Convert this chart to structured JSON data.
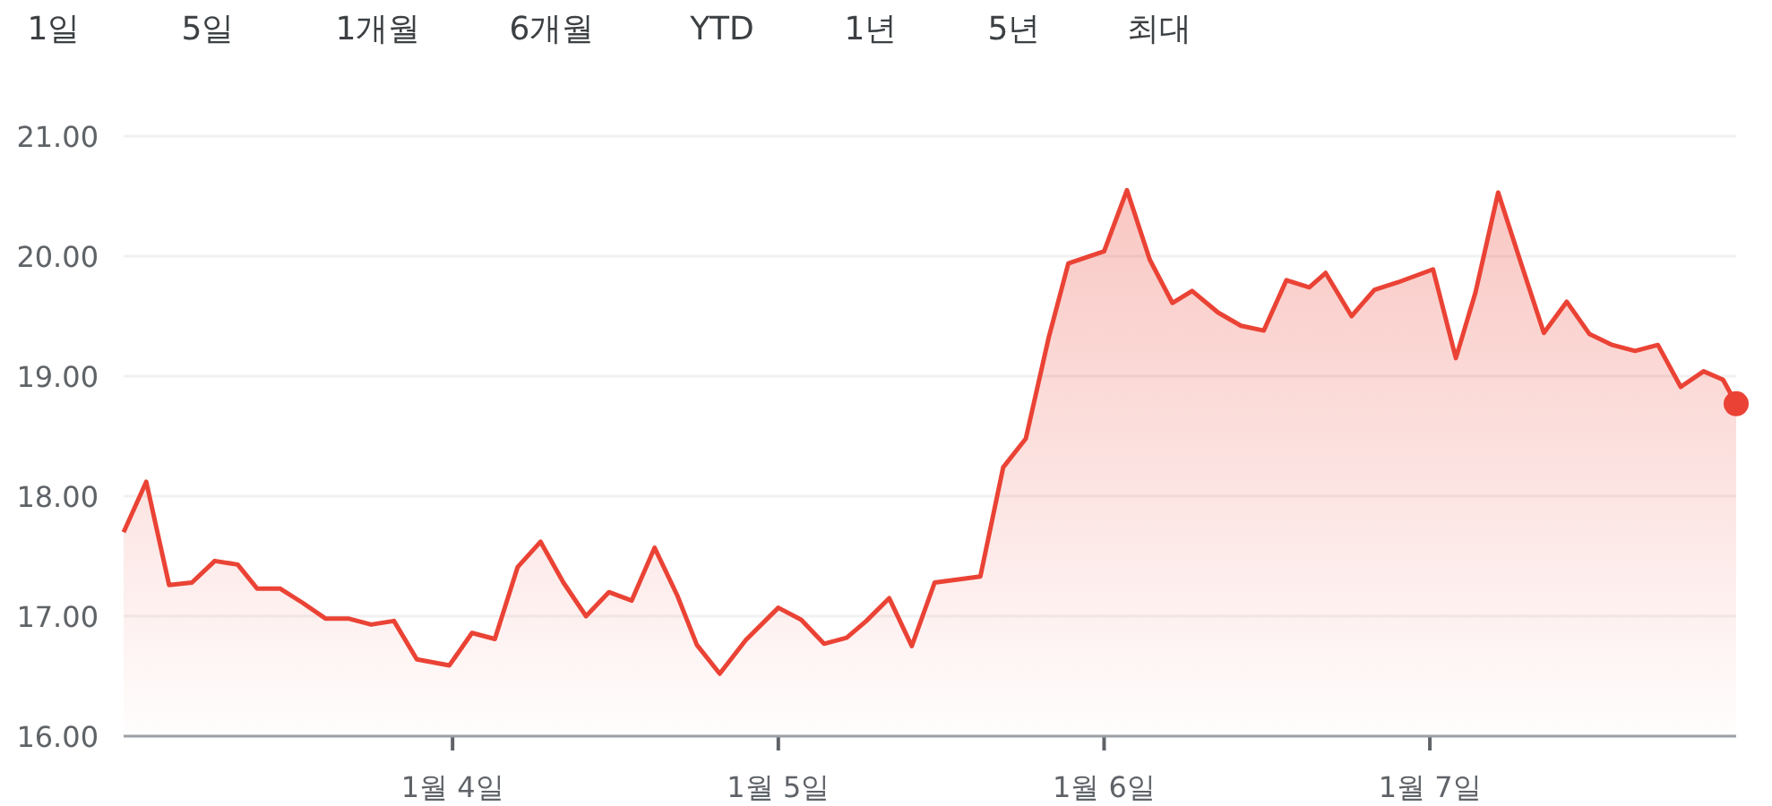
{
  "chart_data": {
    "type": "area",
    "annotations": [
      "1일",
      "5일",
      "1개월",
      "6개월",
      "YTD",
      "1년",
      "5년",
      "최대"
    ],
    "xlim": [
      "--01-02T23:46",
      "--01-07T22:34"
    ],
    "ylim": [
      16,
      21
    ],
    "xticks": [
      {
        "value": "--01-04",
        "label": "1월 4일"
      },
      {
        "value": "--01-05",
        "label": "1월 5일"
      },
      {
        "value": "--01-06",
        "label": "1월 6일"
      },
      {
        "value": "--01-07",
        "label": "1월 7일"
      }
    ],
    "yticks": [
      {
        "value": 16,
        "label": "16.00"
      },
      {
        "value": 17,
        "label": "17.00"
      },
      {
        "value": 18,
        "label": "18.00"
      },
      {
        "value": 19,
        "label": "19.00"
      },
      {
        "value": 20,
        "label": "20.00"
      },
      {
        "value": 21,
        "label": "21.00"
      }
    ],
    "grid": "y",
    "series": [
      {
        "color": "#ea4335",
        "x": [
          "--01-02T23:46",
          "--01-03T01:26",
          "--01-03T03:07",
          "--01-03T04:48",
          "--01-03T06:29",
          "--01-03T08:10",
          "--01-03T09:36",
          "--01-03T11:17",
          "--01-03T12:58",
          "--01-03T14:38",
          "--01-03T16:19",
          "--01-03T18:00",
          "--01-03T19:41",
          "--01-03T21:22",
          "--01-03T23:46",
          "--01-04T01:26",
          "--01-04T03:07",
          "--01-04T04:48",
          "--01-04T06:29",
          "--01-04T08:10",
          "--01-04T09:50",
          "--01-04T11:31",
          "--01-04T13:12",
          "--01-04T14:53",
          "--01-04T16:34",
          "--01-04T18:00",
          "--01-04T19:41",
          "--01-04T21:36",
          "--01-05T00:00",
          "--01-05T01:41",
          "--01-05T03:22",
          "--01-05T05:02",
          "--01-05T06:29",
          "--01-05T08:10",
          "--01-05T09:50",
          "--01-05T11:31",
          "--01-05T14:53",
          "--01-05T16:34",
          "--01-05T18:14",
          "--01-05T19:55",
          "--01-05T21:22",
          "--01-06T00:00",
          "--01-06T01:41",
          "--01-06T03:22",
          "--01-06T05:02",
          "--01-06T06:29",
          "--01-06T08:24",
          "--01-06T10:05",
          "--01-06T11:46",
          "--01-06T13:26",
          "--01-06T15:07",
          "--01-06T16:19",
          "--01-06T18:14",
          "--01-06T19:55",
          "--01-06T21:36",
          "--01-07T00:14",
          "--01-07T01:55",
          "--01-07T03:22",
          "--01-07T05:02",
          "--01-07T06:43",
          "--01-07T08:24",
          "--01-07T10:05",
          "--01-07T11:46",
          "--01-07T13:26",
          "--01-07T15:07",
          "--01-07T16:48",
          "--01-07T18:29",
          "--01-07T20:10",
          "--01-07T21:36",
          "--01-07T22:34"
        ],
        "values": [
          17.7,
          18.12,
          17.26,
          17.28,
          17.46,
          17.43,
          17.23,
          17.23,
          17.11,
          16.98,
          16.98,
          16.93,
          16.96,
          16.64,
          16.59,
          16.86,
          16.81,
          17.41,
          17.62,
          17.28,
          17.0,
          17.2,
          17.13,
          17.57,
          17.17,
          16.76,
          16.52,
          16.8,
          17.07,
          16.97,
          16.77,
          16.82,
          16.96,
          17.15,
          16.75,
          17.28,
          17.33,
          18.24,
          18.48,
          19.32,
          19.94,
          20.04,
          20.55,
          19.97,
          19.61,
          19.71,
          19.53,
          19.42,
          19.38,
          19.8,
          19.74,
          19.86,
          19.5,
          19.72,
          19.78,
          19.89,
          19.15,
          19.7,
          20.53,
          19.94,
          19.36,
          19.62,
          19.35,
          19.26,
          19.21,
          19.26,
          18.91,
          19.04,
          18.97,
          18.77
        ]
      },
      {
        "type": "scatter",
        "marker": "circle",
        "color": "#ea4335",
        "x": [
          "--01-07T22:34"
        ],
        "values": [
          18.77
        ]
      }
    ]
  }
}
